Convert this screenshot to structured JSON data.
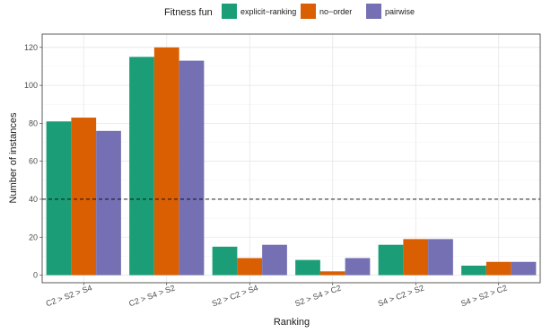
{
  "legend": {
    "title": "Fitness fun",
    "position": "top"
  },
  "chart_data": {
    "type": "bar",
    "title": "",
    "xlabel": "Ranking",
    "ylabel": "Number of instances",
    "ylim": [
      -4,
      127
    ],
    "yticks": [
      0,
      20,
      40,
      60,
      80,
      100,
      120
    ],
    "grid": true,
    "categories": [
      "C2 > S2 > S4",
      "C2 > S4 > S2",
      "S2 > C2 > S4",
      "S2 > S4 > C2",
      "S4 > C2 > S2",
      "S4 > S2 > C2"
    ],
    "series": [
      {
        "name": "explicit−ranking",
        "color": "#1b9e77",
        "values": [
          81,
          115,
          15,
          8,
          16,
          5
        ]
      },
      {
        "name": "no−order",
        "color": "#d95f02",
        "values": [
          83,
          120,
          9,
          2,
          19,
          7
        ]
      },
      {
        "name": "pairwise",
        "color": "#7570b3",
        "values": [
          76,
          113,
          16,
          9,
          19,
          7
        ]
      }
    ],
    "reference_line": {
      "y": 40,
      "style": "dashed"
    }
  }
}
